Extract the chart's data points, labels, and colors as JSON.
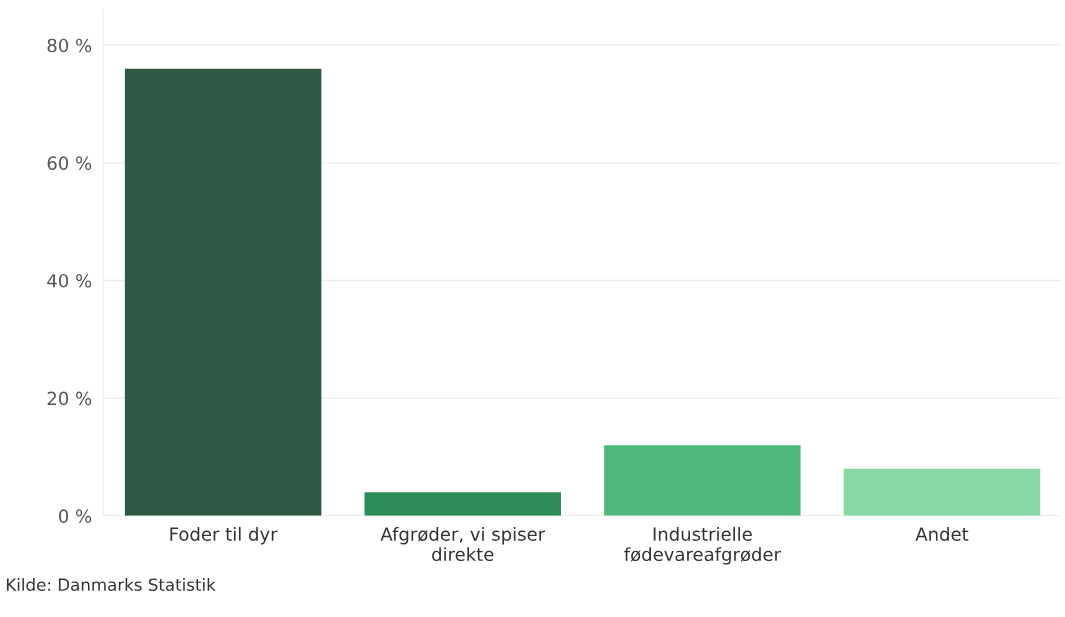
{
  "chart_data": {
    "type": "bar",
    "categories": [
      "Foder til dyr",
      "Afgrøder, vi spiser\ndirekte",
      "Industrielle\nfødevareafgrøder",
      "Andet"
    ],
    "values": [
      76,
      4,
      12,
      8
    ],
    "colors": [
      "#2e5744",
      "#2e8b5a",
      "#4fb97a",
      "#89d8a6"
    ],
    "ylim": [
      0,
      86
    ],
    "yticks": [
      {
        "value": 0,
        "label": "0 %"
      },
      {
        "value": 20,
        "label": "20 %"
      },
      {
        "value": 40,
        "label": "40 %"
      },
      {
        "value": 60,
        "label": "60 %"
      },
      {
        "value": 80,
        "label": "80 %"
      }
    ],
    "grid": "y",
    "annotations": [
      "Kilde: Danmarks Statistik"
    ]
  }
}
